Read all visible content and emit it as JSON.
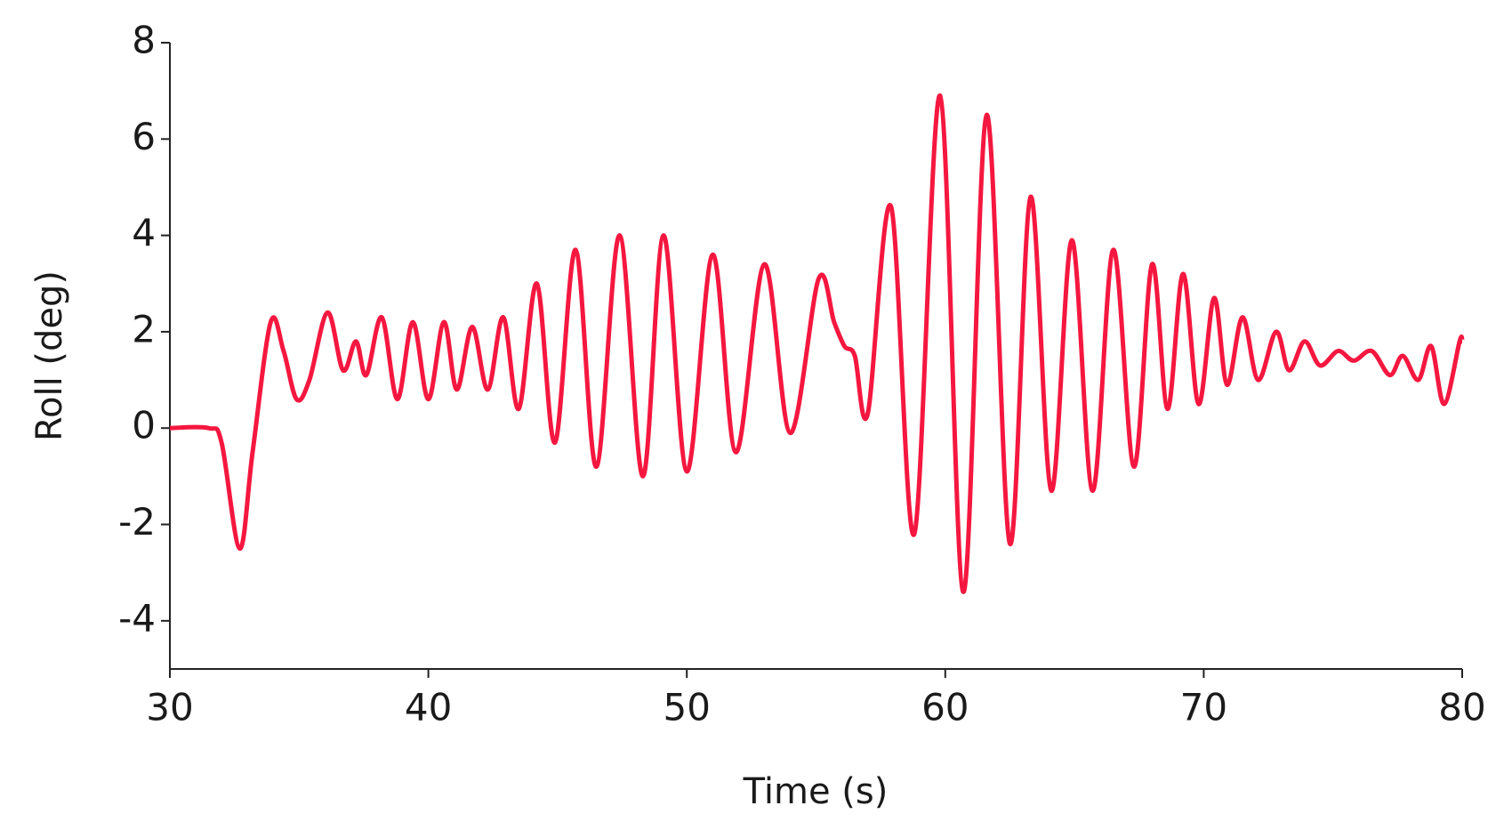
{
  "chart_data": {
    "type": "line",
    "x_label": "Time (s)",
    "y_label": "Roll (deg)",
    "color": "#f5173f",
    "x": [
      30,
      31.5,
      32,
      32.7,
      33.2,
      33.9,
      34.4,
      34.9,
      35.4,
      36.1,
      36.7,
      37.2,
      37.6,
      38.2,
      38.8,
      39.4,
      40,
      40.6,
      41.1,
      41.7,
      42.3,
      42.9,
      43.5,
      44.2,
      44.9,
      45.7,
      46.5,
      47.4,
      48.3,
      49.1,
      50,
      51,
      51.9,
      53,
      54,
      55.1,
      55.7,
      56.1,
      56.5,
      57,
      57.9,
      58.8,
      59.8,
      60.7,
      61.6,
      62.5,
      63.3,
      64.1,
      64.9,
      65.7,
      66.5,
      67.3,
      68,
      68.6,
      69.2,
      69.8,
      70.4,
      70.9,
      71.5,
      72.1,
      72.8,
      73.3,
      73.9,
      74.5,
      75.2,
      75.8,
      76.5,
      77.2,
      77.7,
      78.3,
      78.8,
      79.3,
      79.9,
      80
    ],
    "values": [
      0,
      0,
      -0.3,
      -2.5,
      -0.5,
      2.2,
      1.6,
      0.6,
      1.0,
      2.4,
      1.2,
      1.8,
      1.1,
      2.3,
      0.6,
      2.2,
      0.6,
      2.2,
      0.8,
      2.1,
      0.8,
      2.3,
      0.4,
      3.0,
      -0.3,
      3.7,
      -0.8,
      4.0,
      -1.0,
      4.0,
      -0.9,
      3.6,
      -0.5,
      3.4,
      -0.1,
      3.1,
      2.2,
      1.7,
      1.5,
      0.3,
      4.6,
      -2.2,
      6.9,
      -3.4,
      6.5,
      -2.4,
      4.8,
      -1.3,
      3.9,
      -1.3,
      3.7,
      -0.8,
      3.4,
      0.4,
      3.2,
      0.5,
      2.7,
      0.9,
      2.3,
      1.0,
      2.0,
      1.2,
      1.8,
      1.3,
      1.6,
      1.4,
      1.6,
      1.1,
      1.5,
      1.0,
      1.7,
      0.5,
      1.8,
      1.8
    ],
    "xlim": [
      30,
      80
    ],
    "xticks": [
      30,
      40,
      50,
      60,
      70,
      80
    ],
    "ylim": [
      -5,
      8
    ],
    "yticks": [
      -4,
      -2,
      0,
      2,
      4,
      6,
      8
    ]
  }
}
